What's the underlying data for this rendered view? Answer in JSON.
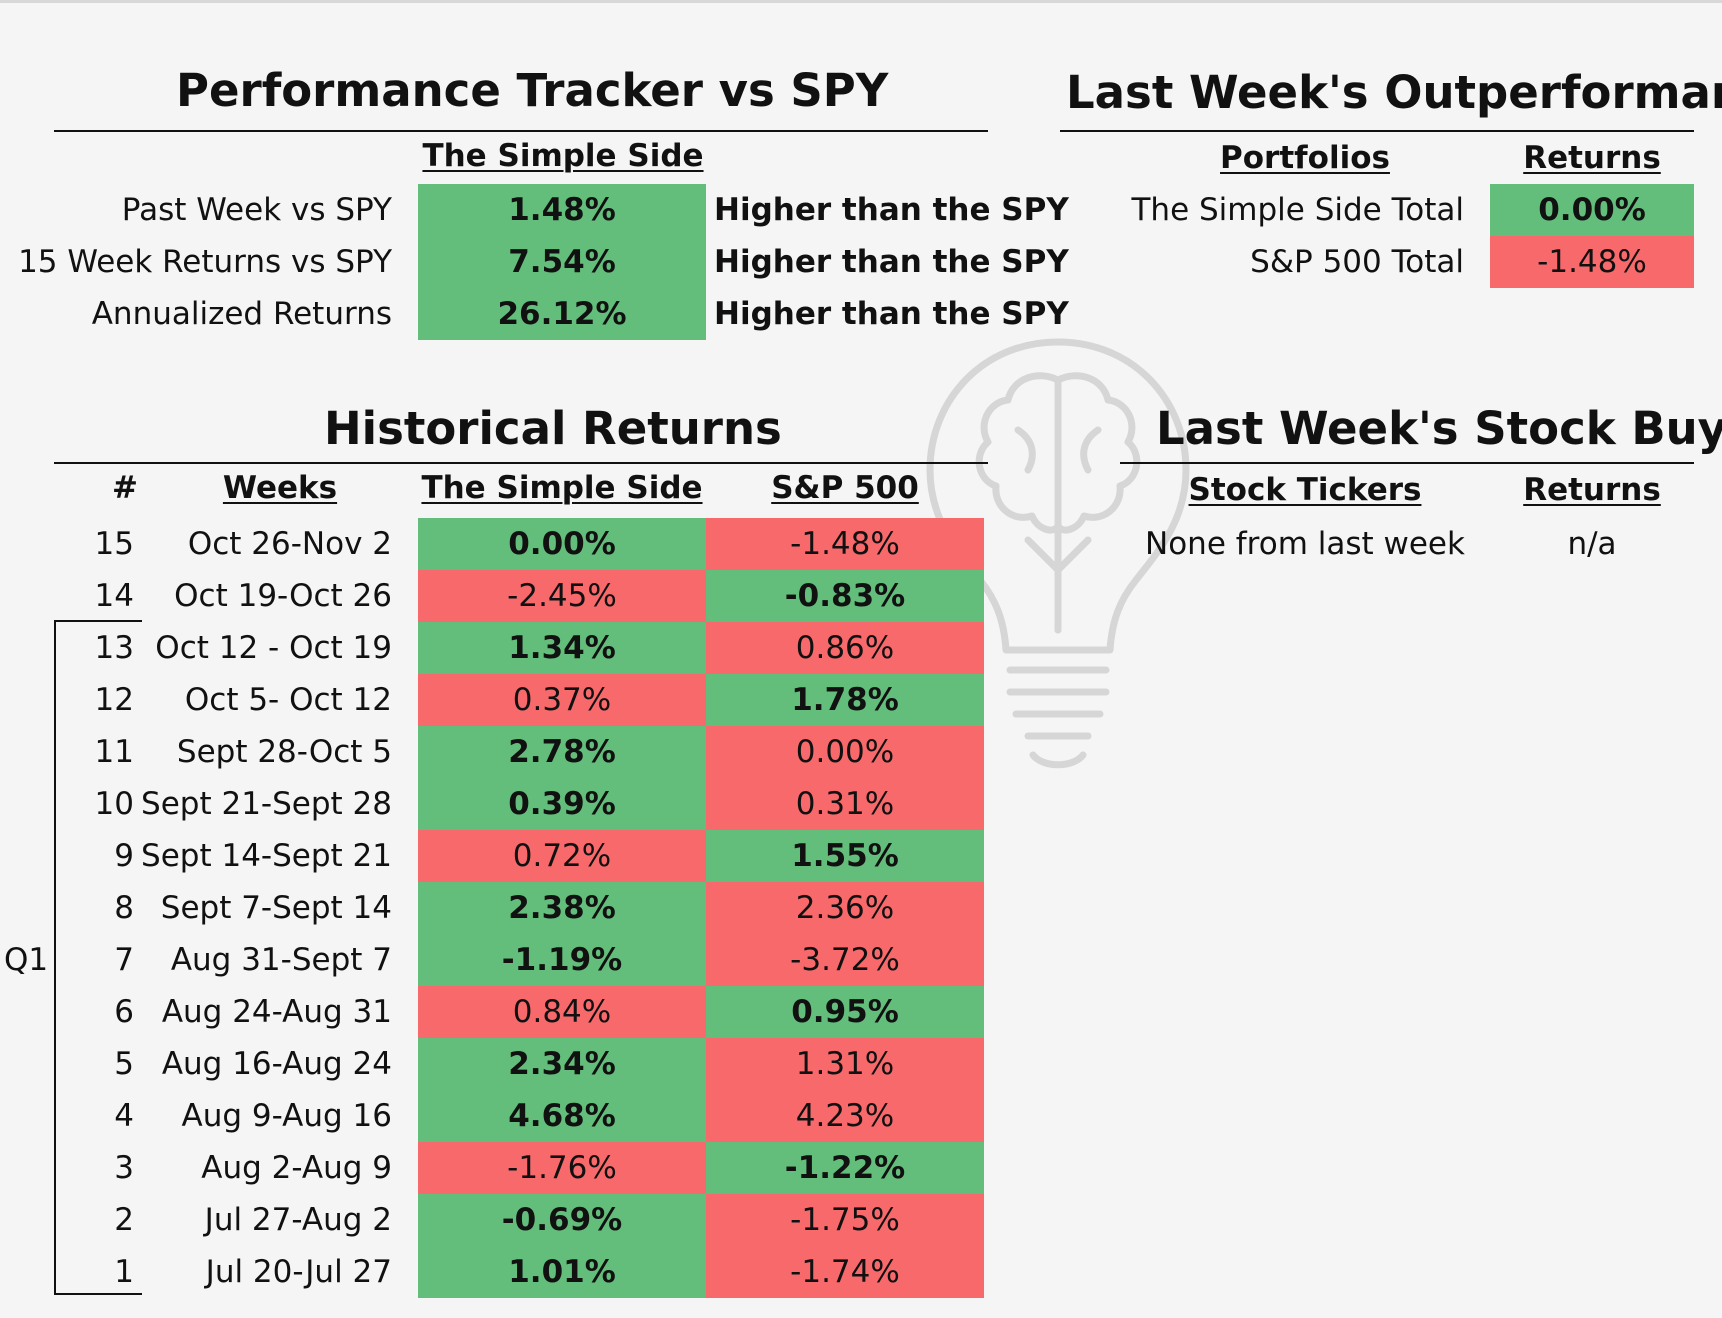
{
  "tracker": {
    "title": "Performance Tracker vs SPY",
    "column_header": "The Simple Side",
    "rows": [
      {
        "label": "Past Week vs SPY",
        "value": "1.48%",
        "verdict": "Higher than the SPY",
        "color": "green"
      },
      {
        "label": "15 Week Returns vs SPY",
        "value": "7.54%",
        "verdict": "Higher than the SPY",
        "color": "green"
      },
      {
        "label": "Annualized Returns",
        "value": "26.12%",
        "verdict": "Higher than the SPY",
        "color": "green"
      }
    ]
  },
  "outperformance": {
    "title": "Last Week's Outperformance",
    "col_portfolios": "Portfolios",
    "col_returns": "Returns",
    "rows": [
      {
        "label": "The Simple Side Total",
        "value": "0.00%",
        "color": "green"
      },
      {
        "label": "S&P 500 Total",
        "value": "-1.48%",
        "color": "red"
      }
    ]
  },
  "historical": {
    "title": "Historical Returns",
    "col_num": "#",
    "col_weeks": "Weeks",
    "col_simple": "The Simple Side",
    "col_sp": "S&P 500",
    "group_label": "Q1",
    "rows": [
      {
        "num": "15",
        "weeks": "Oct 26-Nov 2",
        "simple": "0.00%",
        "sp": "-1.48%",
        "winner": "simple"
      },
      {
        "num": "14",
        "weeks": "Oct 19-Oct 26",
        "simple": "-2.45%",
        "sp": "-0.83%",
        "winner": "sp"
      },
      {
        "num": "13",
        "weeks": "Oct 12 - Oct 19",
        "simple": "1.34%",
        "sp": "0.86%",
        "winner": "simple"
      },
      {
        "num": "12",
        "weeks": "Oct 5- Oct 12",
        "simple": "0.37%",
        "sp": "1.78%",
        "winner": "sp"
      },
      {
        "num": "11",
        "weeks": "Sept 28-Oct 5",
        "simple": "2.78%",
        "sp": "0.00%",
        "winner": "simple"
      },
      {
        "num": "10",
        "weeks": "Sept 21-Sept 28",
        "simple": "0.39%",
        "sp": "0.31%",
        "winner": "simple"
      },
      {
        "num": "9",
        "weeks": "Sept 14-Sept 21",
        "simple": "0.72%",
        "sp": "1.55%",
        "winner": "sp"
      },
      {
        "num": "8",
        "weeks": "Sept 7-Sept 14",
        "simple": "2.38%",
        "sp": "2.36%",
        "winner": "simple"
      },
      {
        "num": "7",
        "weeks": "Aug 31-Sept 7",
        "simple": "-1.19%",
        "sp": "-3.72%",
        "winner": "simple"
      },
      {
        "num": "6",
        "weeks": "Aug 24-Aug 31",
        "simple": "0.84%",
        "sp": "0.95%",
        "winner": "sp"
      },
      {
        "num": "5",
        "weeks": "Aug 16-Aug 24",
        "simple": "2.34%",
        "sp": "1.31%",
        "winner": "simple"
      },
      {
        "num": "4",
        "weeks": "Aug 9-Aug 16",
        "simple": "4.68%",
        "sp": "4.23%",
        "winner": "simple"
      },
      {
        "num": "3",
        "weeks": "Aug 2-Aug 9",
        "simple": "-1.76%",
        "sp": "-1.22%",
        "winner": "sp"
      },
      {
        "num": "2",
        "weeks": "Jul 27-Aug 2",
        "simple": "-0.69%",
        "sp": "-1.75%",
        "winner": "simple"
      },
      {
        "num": "1",
        "weeks": "Jul 20-Jul 27",
        "simple": "1.01%",
        "sp": "-1.74%",
        "winner": "simple"
      }
    ]
  },
  "stock_buys": {
    "title": "Last Week's Stock Buys",
    "col_tickers": "Stock Tickers",
    "col_returns": "Returns",
    "rows": [
      {
        "ticker": "None from last week",
        "value": "n/a"
      }
    ]
  },
  "colors": {
    "green": "#63be7b",
    "red": "#f8696b",
    "background": "#f5f5f5"
  },
  "icons": {
    "watermark": "lightbulb-brain-icon"
  }
}
